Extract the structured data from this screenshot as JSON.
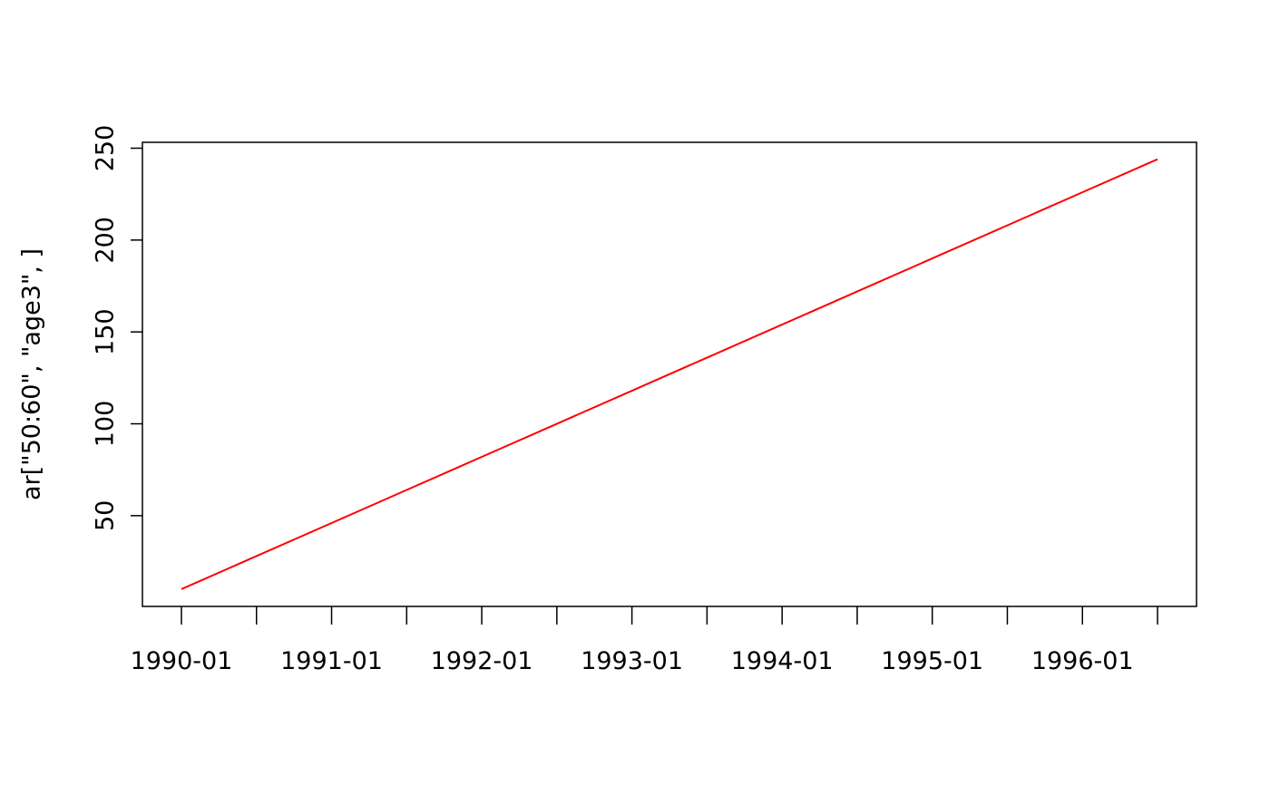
{
  "chart_data": {
    "type": "line",
    "y_label": "ar[\"50:60\", \"age3\", ]",
    "categories": [
      "1990-01",
      null,
      "1991-01",
      null,
      "1992-01",
      null,
      "1993-01",
      null,
      "1994-01",
      null,
      "1995-01",
      null,
      "1996-01",
      null
    ],
    "series": [
      {
        "color": "#ff0000",
        "values": [
          10,
          28,
          46,
          64,
          82,
          100,
          118,
          136,
          154,
          172,
          190,
          208,
          226,
          244
        ]
      }
    ],
    "ylim": [
      0.6,
      253.2
    ],
    "yticks": [
      50,
      100,
      150,
      200,
      250
    ],
    "grid": false
  }
}
